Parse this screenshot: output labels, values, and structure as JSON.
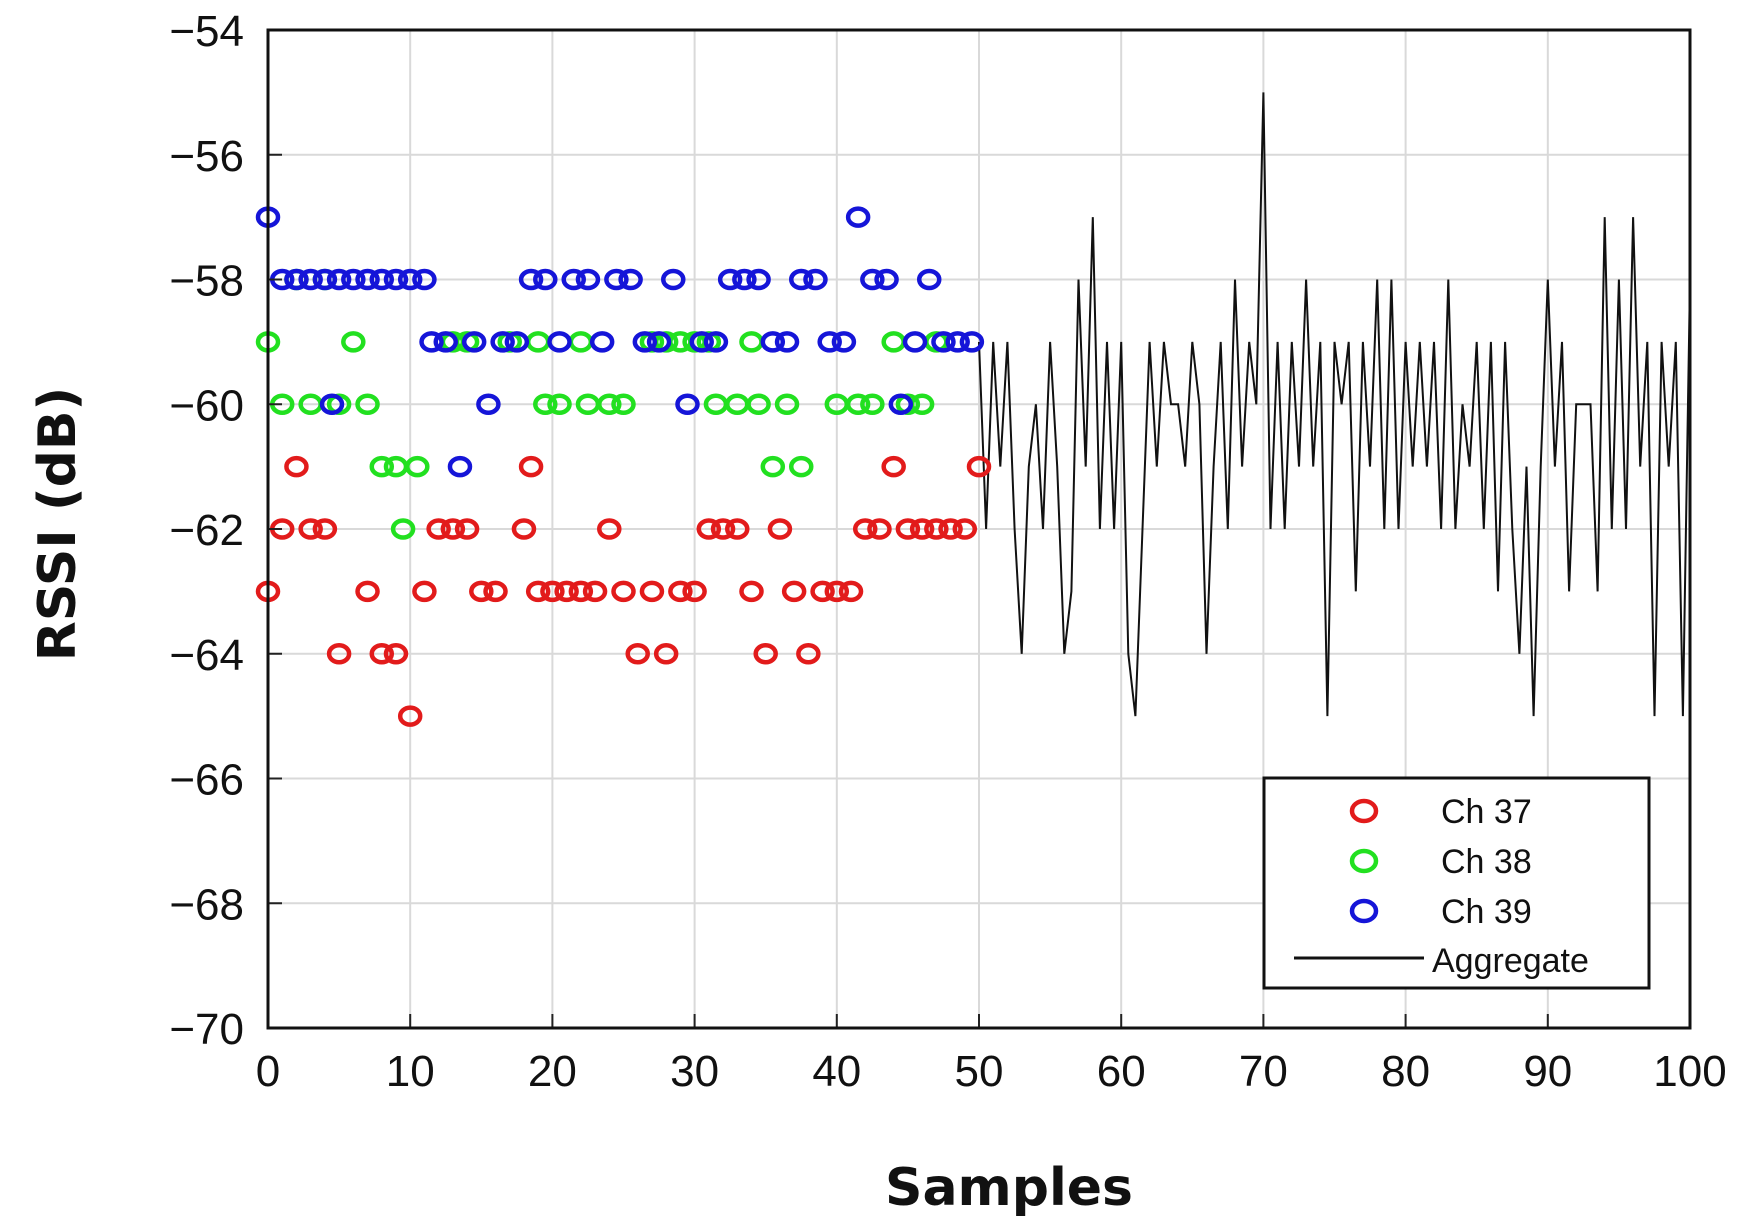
{
  "chart_data": {
    "type": "scatter",
    "title": "",
    "xlabel": "Samples",
    "ylabel": "RSSI (dB)",
    "xlim": [
      0,
      100
    ],
    "ylim": [
      -70,
      -54
    ],
    "grid": true,
    "x_ticks": [
      "0",
      "10",
      "20",
      "30",
      "40",
      "50",
      "60",
      "70",
      "80",
      "90",
      "100"
    ],
    "y_ticks": [
      "−54",
      "−56",
      "−58",
      "−60",
      "−62",
      "−64",
      "−66",
      "−68",
      "−70"
    ],
    "legend_position": "bottom-right",
    "series": [
      {
        "name": "Ch 37",
        "color": "#e21b1b",
        "marker": "circle",
        "points": [
          [
            0,
            -63
          ],
          [
            1,
            -62
          ],
          [
            2,
            -61
          ],
          [
            3,
            -62
          ],
          [
            4,
            -62
          ],
          [
            5,
            -64
          ],
          [
            7,
            -63
          ],
          [
            8,
            -64
          ],
          [
            9,
            -64
          ],
          [
            10,
            -65
          ],
          [
            11,
            -63
          ],
          [
            12,
            -62
          ],
          [
            13,
            -62
          ],
          [
            14,
            -62
          ],
          [
            15,
            -63
          ],
          [
            16,
            -63
          ],
          [
            18,
            -62
          ],
          [
            18.5,
            -61
          ],
          [
            19,
            -63
          ],
          [
            20,
            -63
          ],
          [
            21,
            -63
          ],
          [
            22,
            -63
          ],
          [
            23,
            -63
          ],
          [
            24,
            -62
          ],
          [
            25,
            -63
          ],
          [
            26,
            -64
          ],
          [
            27,
            -63
          ],
          [
            28,
            -64
          ],
          [
            29,
            -63
          ],
          [
            30,
            -63
          ],
          [
            31,
            -62
          ],
          [
            32,
            -62
          ],
          [
            33,
            -62
          ],
          [
            34,
            -63
          ],
          [
            35,
            -64
          ],
          [
            36,
            -62
          ],
          [
            37,
            -63
          ],
          [
            38,
            -64
          ],
          [
            39,
            -63
          ],
          [
            40,
            -63
          ],
          [
            41,
            -63
          ],
          [
            42,
            -62
          ],
          [
            43,
            -62
          ],
          [
            44,
            -61
          ],
          [
            45,
            -62
          ],
          [
            46,
            -62
          ],
          [
            47,
            -62
          ],
          [
            48,
            -62
          ],
          [
            49,
            -62
          ],
          [
            50,
            -61
          ]
        ]
      },
      {
        "name": "Ch 38",
        "color": "#22e020",
        "marker": "circle",
        "points": [
          [
            0,
            -59
          ],
          [
            1,
            -60
          ],
          [
            2,
            -58
          ],
          [
            3,
            -60
          ],
          [
            4,
            -58
          ],
          [
            5,
            -60
          ],
          [
            6,
            -59
          ],
          [
            7,
            -60
          ],
          [
            8,
            -61
          ],
          [
            9,
            -61
          ],
          [
            9.5,
            -62
          ],
          [
            10.5,
            -61
          ],
          [
            13,
            -59
          ],
          [
            14,
            -59
          ],
          [
            17,
            -59
          ],
          [
            19,
            -59
          ],
          [
            19.5,
            -60
          ],
          [
            20.5,
            -60
          ],
          [
            22,
            -59
          ],
          [
            22.5,
            -60
          ],
          [
            24,
            -60
          ],
          [
            25,
            -60
          ],
          [
            27,
            -59
          ],
          [
            28,
            -59
          ],
          [
            29,
            -59
          ],
          [
            30,
            -59
          ],
          [
            31,
            -59
          ],
          [
            31.5,
            -60
          ],
          [
            33,
            -60
          ],
          [
            34,
            -59
          ],
          [
            34.5,
            -60
          ],
          [
            35.5,
            -61
          ],
          [
            36.5,
            -60
          ],
          [
            37.5,
            -61
          ],
          [
            40,
            -60
          ],
          [
            41.5,
            -60
          ],
          [
            42.5,
            -60
          ],
          [
            44,
            -59
          ],
          [
            45,
            -60
          ],
          [
            46,
            -60
          ],
          [
            47,
            -59
          ]
        ]
      },
      {
        "name": "Ch 39",
        "color": "#1515d8",
        "marker": "circle",
        "points": [
          [
            0,
            -57
          ],
          [
            1,
            -58
          ],
          [
            2,
            -58
          ],
          [
            3,
            -58
          ],
          [
            4,
            -58
          ],
          [
            4.5,
            -60
          ],
          [
            5,
            -58
          ],
          [
            6,
            -58
          ],
          [
            7,
            -58
          ],
          [
            8,
            -58
          ],
          [
            9,
            -58
          ],
          [
            10,
            -58
          ],
          [
            11,
            -58
          ],
          [
            11.5,
            -59
          ],
          [
            12.5,
            -59
          ],
          [
            13.5,
            -61
          ],
          [
            14.5,
            -59
          ],
          [
            15.5,
            -60
          ],
          [
            16.5,
            -59
          ],
          [
            17.5,
            -59
          ],
          [
            18.5,
            -58
          ],
          [
            19.5,
            -58
          ],
          [
            20.5,
            -59
          ],
          [
            21.5,
            -58
          ],
          [
            22.5,
            -58
          ],
          [
            23.5,
            -59
          ],
          [
            24.5,
            -58
          ],
          [
            25.5,
            -58
          ],
          [
            26.5,
            -59
          ],
          [
            27.5,
            -59
          ],
          [
            28.5,
            -58
          ],
          [
            29.5,
            -60
          ],
          [
            30.5,
            -59
          ],
          [
            31.5,
            -59
          ],
          [
            32.5,
            -58
          ],
          [
            33.5,
            -58
          ],
          [
            34.5,
            -58
          ],
          [
            35.5,
            -59
          ],
          [
            36.5,
            -59
          ],
          [
            37.5,
            -58
          ],
          [
            38.5,
            -58
          ],
          [
            39.5,
            -59
          ],
          [
            40.5,
            -59
          ],
          [
            41.5,
            -57
          ],
          [
            42.5,
            -58
          ],
          [
            43.5,
            -58
          ],
          [
            44.5,
            -60
          ],
          [
            45.5,
            -59
          ],
          [
            46.5,
            -58
          ],
          [
            47.5,
            -59
          ],
          [
            48.5,
            -59
          ],
          [
            49.5,
            -59
          ]
        ]
      },
      {
        "name": "Aggregate",
        "color": "#111111",
        "marker": "line",
        "x_start": 50,
        "x_end": 100,
        "samples_per_unit": 2,
        "base_range": [
          -62,
          -58
        ],
        "spikes": [
          [
            58,
            -57
          ],
          [
            70,
            -55
          ],
          [
            94,
            -57
          ],
          [
            96,
            -57
          ],
          [
            53,
            -64
          ],
          [
            56,
            -64
          ],
          [
            60.5,
            -64
          ],
          [
            61,
            -65
          ],
          [
            66,
            -64
          ],
          [
            74.5,
            -65
          ],
          [
            88,
            -64
          ],
          [
            89,
            -65
          ],
          [
            97.5,
            -65
          ],
          [
            99.5,
            -65
          ]
        ]
      }
    ]
  }
}
